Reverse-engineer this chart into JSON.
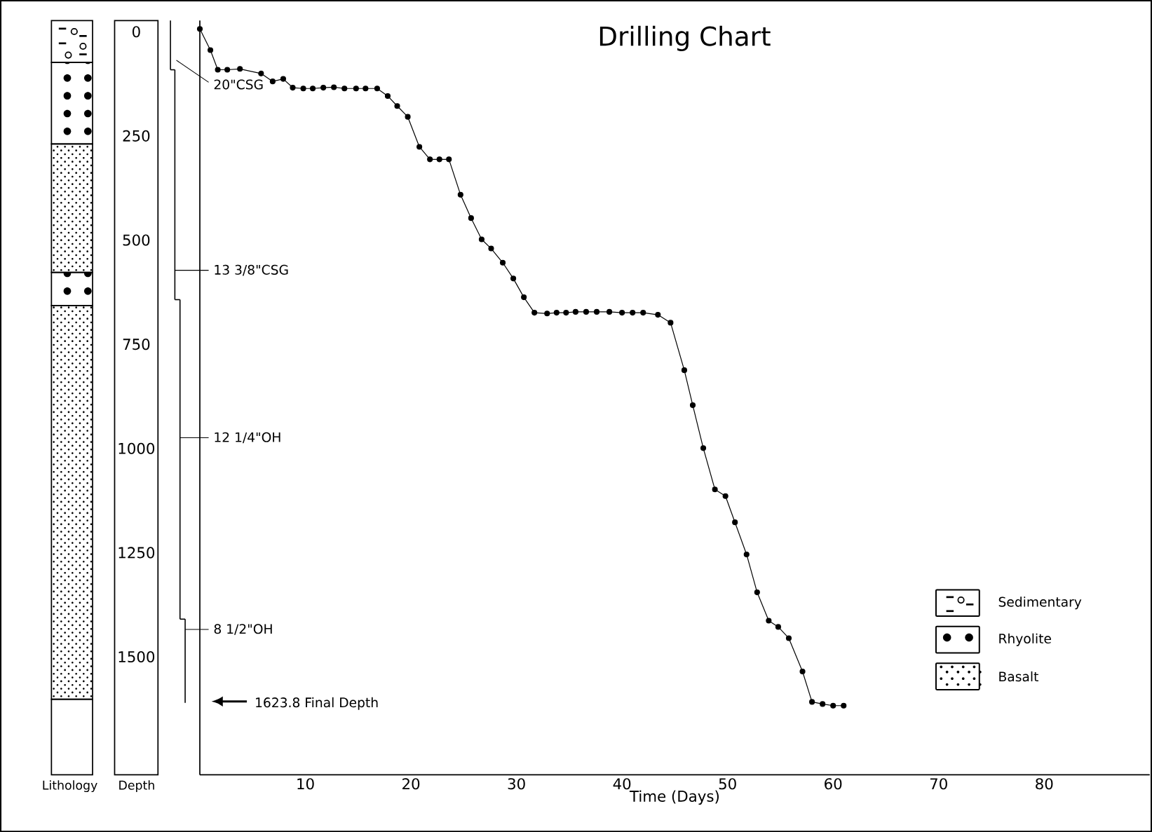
{
  "chart_data": {
    "type": "line",
    "title": "Drilling Chart",
    "xlabel": "Time (Days)",
    "xlim": [
      0,
      90
    ],
    "xticks": [
      10,
      20,
      30,
      40,
      50,
      60,
      70,
      80
    ],
    "ylim": [
      1790,
      -20
    ],
    "yticks": [
      0,
      250,
      500,
      750,
      1000,
      1250,
      1500
    ],
    "marker": "circle",
    "line_style": "solid",
    "series": [
      {
        "color": "#000000",
        "x": [
          0,
          1.0,
          1.7,
          2.6,
          3.8,
          5.8,
          6.9,
          7.9,
          8.8,
          9.8,
          10.7,
          11.7,
          12.7,
          13.7,
          14.8,
          15.7,
          16.8,
          17.8,
          18.7,
          19.7,
          20.8,
          21.8,
          22.7,
          23.6,
          24.7,
          25.7,
          26.7,
          27.6,
          28.7,
          29.7,
          30.7,
          31.7,
          32.9,
          33.8,
          34.7,
          35.6,
          36.6,
          37.6,
          38.8,
          40.0,
          41.0,
          42.0,
          43.4,
          44.6,
          45.9,
          46.7,
          47.7,
          48.8,
          49.8,
          50.7,
          51.8,
          52.8,
          53.9,
          54.8,
          55.8,
          57.1,
          58.0,
          59.0,
          60.0,
          61.0
        ],
        "values": [
          0,
          51,
          98,
          98,
          96,
          107,
          126,
          120,
          141,
          143,
          143,
          141,
          140,
          143,
          143,
          143,
          143,
          161,
          185,
          211,
          283,
          313,
          313,
          313,
          398,
          454,
          505,
          527,
          561,
          599,
          644,
          681,
          683,
          681,
          681,
          679,
          679,
          679,
          679,
          681,
          681,
          681,
          686,
          705,
          819,
          903,
          1006,
          1105,
          1121,
          1184,
          1261,
          1352,
          1420,
          1435,
          1462,
          1542,
          1615,
          1620,
          1624,
          1624
        ]
      }
    ],
    "annotations": [
      "Lithology",
      "Depth",
      "Sedimentary",
      "Rhyolite",
      "Basalt",
      "20\"CSG",
      "13 3/8\"CSG",
      "12 1/4\"OH",
      "8 1/2\"OH",
      "1623.8 Final Depth"
    ]
  }
}
